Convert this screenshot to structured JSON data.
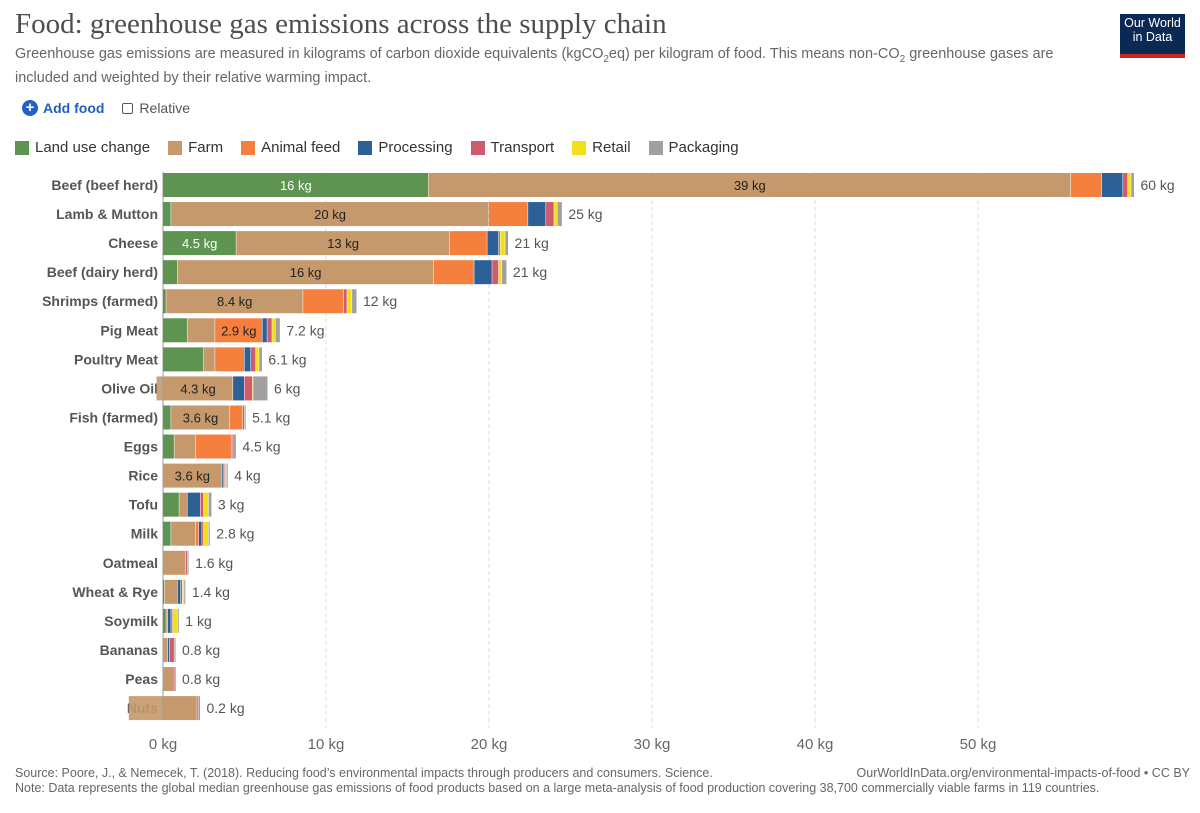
{
  "header": {
    "title": "Food: greenhouse gas emissions across the supply chain",
    "subtitle_part1": "Greenhouse gas emissions are measured in kilograms of carbon dioxide equivalents (kgCO",
    "subtitle_sub": "2",
    "subtitle_part2": "eq) per kilogram of food. This means non-CO",
    "subtitle_sub2": "2",
    "subtitle_part3": " greenhouse gases are included and weighted by their relative warming impact.",
    "logo_line1": "Our World",
    "logo_line2": "in Data"
  },
  "controls": {
    "add_food": "Add food",
    "relative": "Relative",
    "relative_checked": false
  },
  "footer": {
    "source": "Source: Poore, J., & Nemecek, T. (2018). Reducing food’s environmental impacts through producers and consumers. Science.",
    "url": "OurWorldInData.org/environmental-impacts-of-food • CC BY",
    "note": "Note: Data represents the global median greenhouse gas emissions of food products based on a large meta-analysis of food production covering 38,700 commercially viable farms in 119 countries."
  },
  "chart_data": {
    "type": "bar",
    "orientation": "horizontal",
    "stacked": true,
    "unit": "kg",
    "xlim": [
      0,
      60
    ],
    "x_ticks": [
      "0 kg",
      "10 kg",
      "20 kg",
      "30 kg",
      "40 kg",
      "50 kg"
    ],
    "x_tick_values": [
      0,
      10,
      20,
      30,
      40,
      50
    ],
    "grid": "vertical dashed",
    "legend": "top-left",
    "series": [
      {
        "name": "Land use change",
        "color": "#5e9352"
      },
      {
        "name": "Farm",
        "color": "#c5996b"
      },
      {
        "name": "Animal feed",
        "color": "#f5803e"
      },
      {
        "name": "Processing",
        "color": "#2d6097"
      },
      {
        "name": "Transport",
        "color": "#cf5b6f"
      },
      {
        "name": "Retail",
        "color": "#f1e01b"
      },
      {
        "name": "Packaging",
        "color": "#a0a0a0"
      }
    ],
    "categories": [
      "Beef (beef herd)",
      "Lamb & Mutton",
      "Cheese",
      "Beef (dairy herd)",
      "Shrimps (farmed)",
      "Pig Meat",
      "Poultry Meat",
      "Olive Oil",
      "Fish (farmed)",
      "Eggs",
      "Rice",
      "Tofu",
      "Milk",
      "Oatmeal",
      "Wheat & Rye",
      "Soymilk",
      "Bananas",
      "Peas",
      "Nuts"
    ],
    "values": [
      [
        16.3,
        39.4,
        1.9,
        1.3,
        0.3,
        0.2,
        0.2
      ],
      [
        0.5,
        19.5,
        2.4,
        1.1,
        0.5,
        0.2,
        0.3
      ],
      [
        4.5,
        13.1,
        2.3,
        0.7,
        0.1,
        0.3,
        0.2
      ],
      [
        0.9,
        15.7,
        2.5,
        1.1,
        0.4,
        0.2,
        0.3
      ],
      [
        0.2,
        8.4,
        2.5,
        0.0,
        0.2,
        0.3,
        0.3
      ],
      [
        1.5,
        1.7,
        2.9,
        0.3,
        0.3,
        0.2,
        0.3
      ],
      [
        2.5,
        0.7,
        1.8,
        0.4,
        0.3,
        0.2,
        0.2
      ],
      [
        -0.4,
        4.3,
        0.0,
        0.7,
        0.5,
        0.04,
        0.9
      ],
      [
        0.5,
        3.6,
        0.8,
        0.0,
        0.1,
        0.0,
        0.1
      ],
      [
        0.7,
        1.3,
        2.2,
        0.0,
        0.1,
        0.0,
        0.2
      ],
      [
        0.0,
        3.6,
        0.0,
        0.1,
        0.1,
        0.1,
        0.1
      ],
      [
        1.0,
        0.5,
        0.0,
        0.8,
        0.2,
        0.3,
        0.2
      ],
      [
        0.5,
        1.5,
        0.2,
        0.2,
        0.1,
        0.3,
        0.1
      ],
      [
        0.0,
        1.4,
        0.0,
        0.0,
        0.1,
        0.0,
        0.1
      ],
      [
        0.1,
        0.8,
        0.0,
        0.2,
        0.1,
        0.1,
        0.1
      ],
      [
        0.2,
        0.1,
        0.0,
        0.2,
        0.1,
        0.3,
        0.1
      ],
      [
        0.0,
        0.3,
        0.0,
        0.1,
        0.3,
        0.0,
        0.1
      ],
      [
        0.0,
        0.7,
        0.0,
        0.0,
        0.1,
        0.0,
        0.0
      ],
      [
        -2.1,
        2.1,
        0.0,
        0.0,
        0.1,
        0.0,
        0.1
      ]
    ],
    "totals": [
      "60 kg",
      "25 kg",
      "21 kg",
      "21 kg",
      "12 kg",
      "7.2 kg",
      "6.1 kg",
      "6 kg",
      "5.1 kg",
      "4.5 kg",
      "4 kg",
      "3 kg",
      "2.8 kg",
      "1.6 kg",
      "1.4 kg",
      "1 kg",
      "0.8 kg",
      "0.8 kg",
      "0.2 kg"
    ],
    "segment_labels": [
      [
        "16 kg",
        "39 kg"
      ],
      [
        "",
        "20 kg"
      ],
      [
        "4.5 kg",
        "13 kg"
      ],
      [
        "",
        "16 kg"
      ],
      [
        "",
        "8.4 kg"
      ],
      [
        "",
        "",
        "2.9 kg"
      ],
      [],
      [
        "",
        "4.3 kg"
      ],
      [
        "",
        "3.6 kg"
      ],
      [],
      [
        "",
        "3.6 kg"
      ],
      [],
      [],
      [],
      [],
      [],
      [],
      [],
      []
    ]
  }
}
